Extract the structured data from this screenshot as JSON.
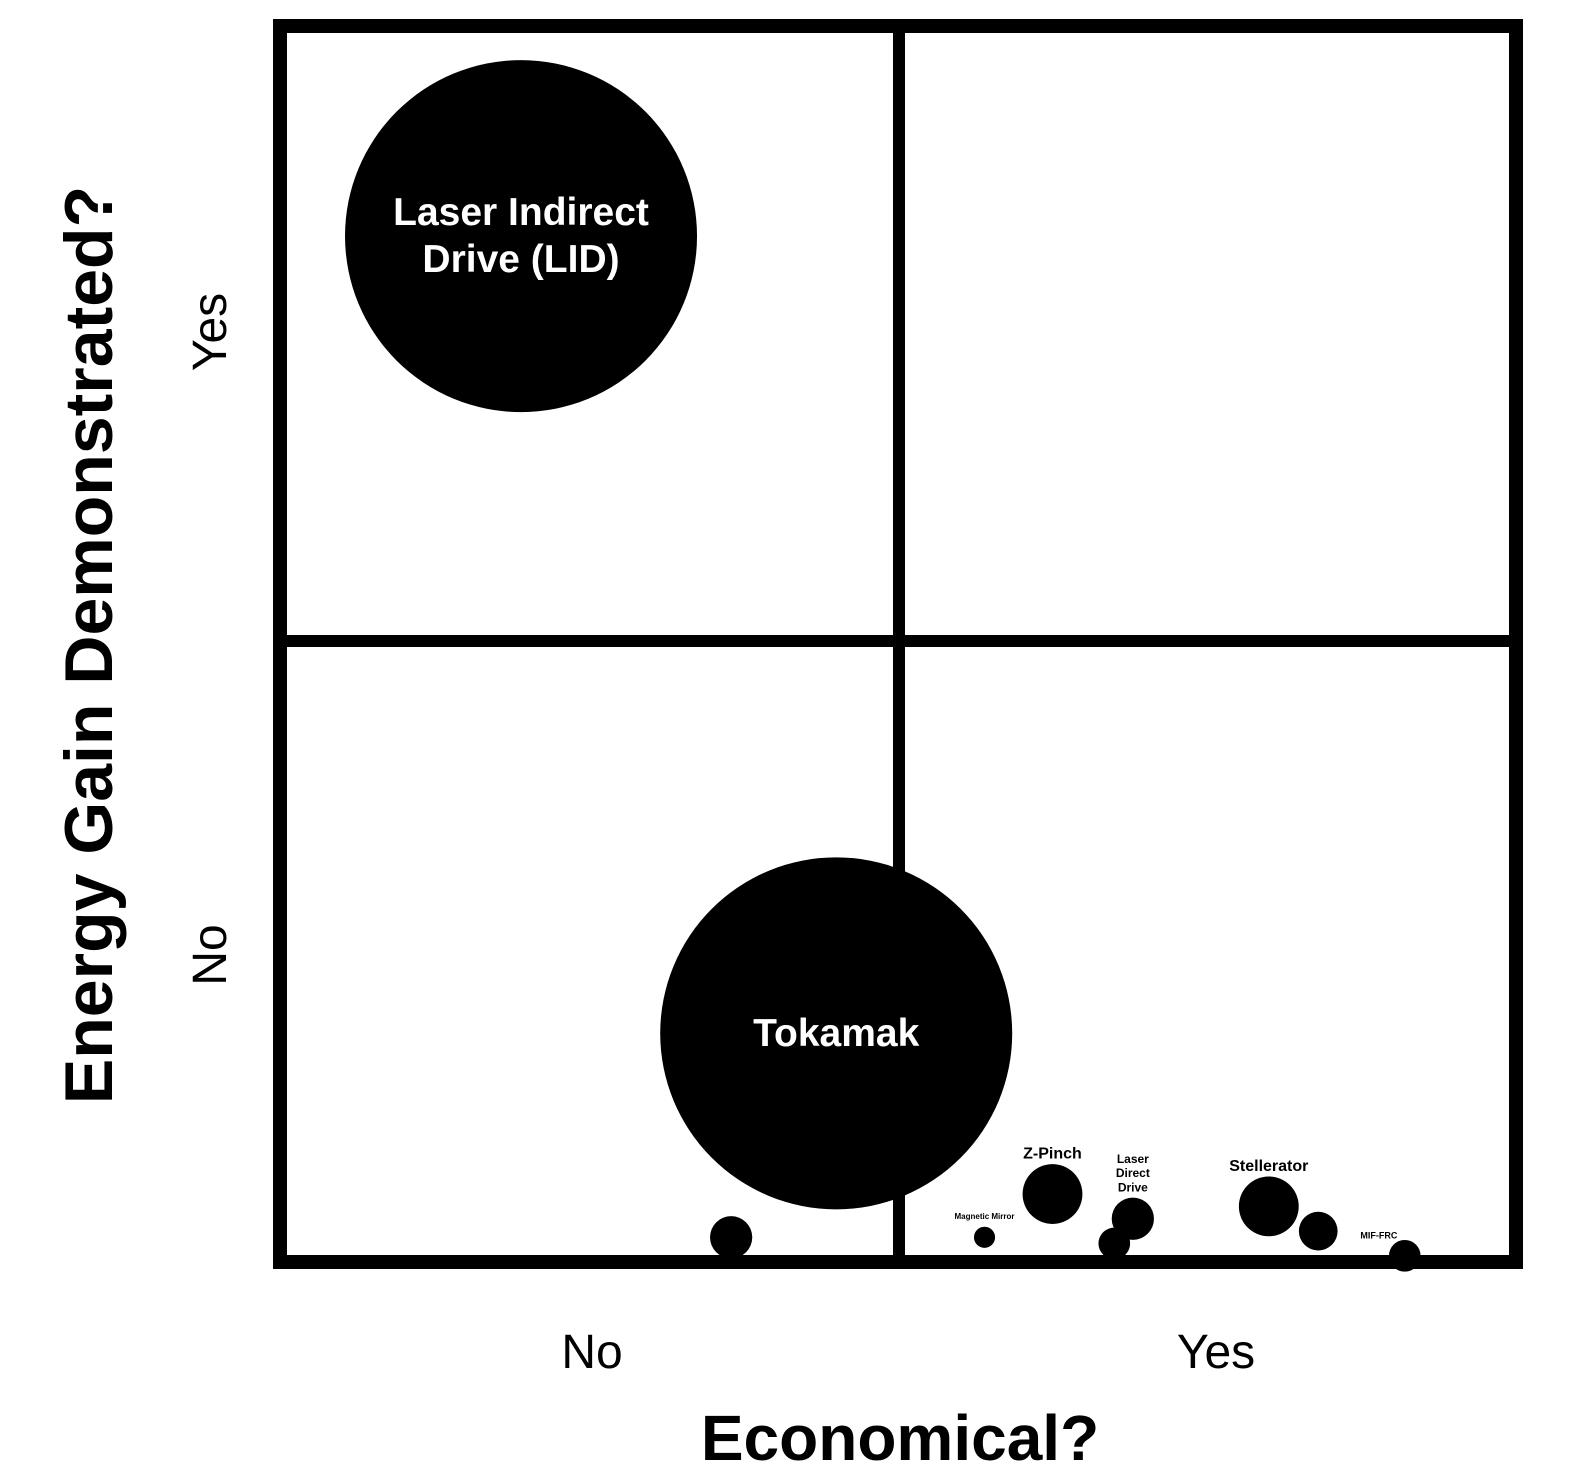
{
  "colors": {
    "bubble": "#000000",
    "frame": "#000000",
    "label_inside": "#ffffff",
    "label_outside": "#000000",
    "background": "#ffffff"
  },
  "chart_data": {
    "type": "scatter",
    "variant": "bubble-quadrant",
    "title": "",
    "xlabel": "Economical?",
    "ylabel": "Energy Gain Demonstrated?",
    "x_categories": [
      "No",
      "Yes"
    ],
    "y_categories": [
      "No",
      "Yes"
    ],
    "xlim": [
      0,
      2
    ],
    "ylim": [
      0,
      2
    ],
    "grid": true,
    "legend": "none",
    "series": [
      {
        "points": [
          {
            "label": "Laser Indirect Drive (LID)",
            "x": 0.39,
            "y": 1.66,
            "size": 1.0,
            "label_position": "inside"
          },
          {
            "label": "Tokamak",
            "x": 0.9,
            "y": 0.37,
            "size": 1.0,
            "label_position": "inside"
          },
          {
            "label": "",
            "x": 0.73,
            "y": 0.04,
            "size": 0.12,
            "label_position": "none"
          },
          {
            "label": "Magnetic Mirror",
            "x": 1.14,
            "y": 0.04,
            "size": 0.06,
            "label_position": "above"
          },
          {
            "label": "Z-Pinch",
            "x": 1.25,
            "y": 0.11,
            "size": 0.17,
            "label_position": "above"
          },
          {
            "label": "Laser Direct Drive",
            "x": 1.38,
            "y": 0.07,
            "size": 0.12,
            "label_position": "above"
          },
          {
            "label": "",
            "x": 1.35,
            "y": 0.03,
            "size": 0.09,
            "label_position": "none"
          },
          {
            "label": "Stellerator",
            "x": 1.6,
            "y": 0.09,
            "size": 0.17,
            "label_position": "above"
          },
          {
            "label": "",
            "x": 1.68,
            "y": 0.05,
            "size": 0.11,
            "label_position": "none"
          },
          {
            "label": "MIF-FRC",
            "x": 1.82,
            "y": 0.01,
            "size": 0.09,
            "label_position": "above-left"
          }
        ]
      }
    ]
  }
}
